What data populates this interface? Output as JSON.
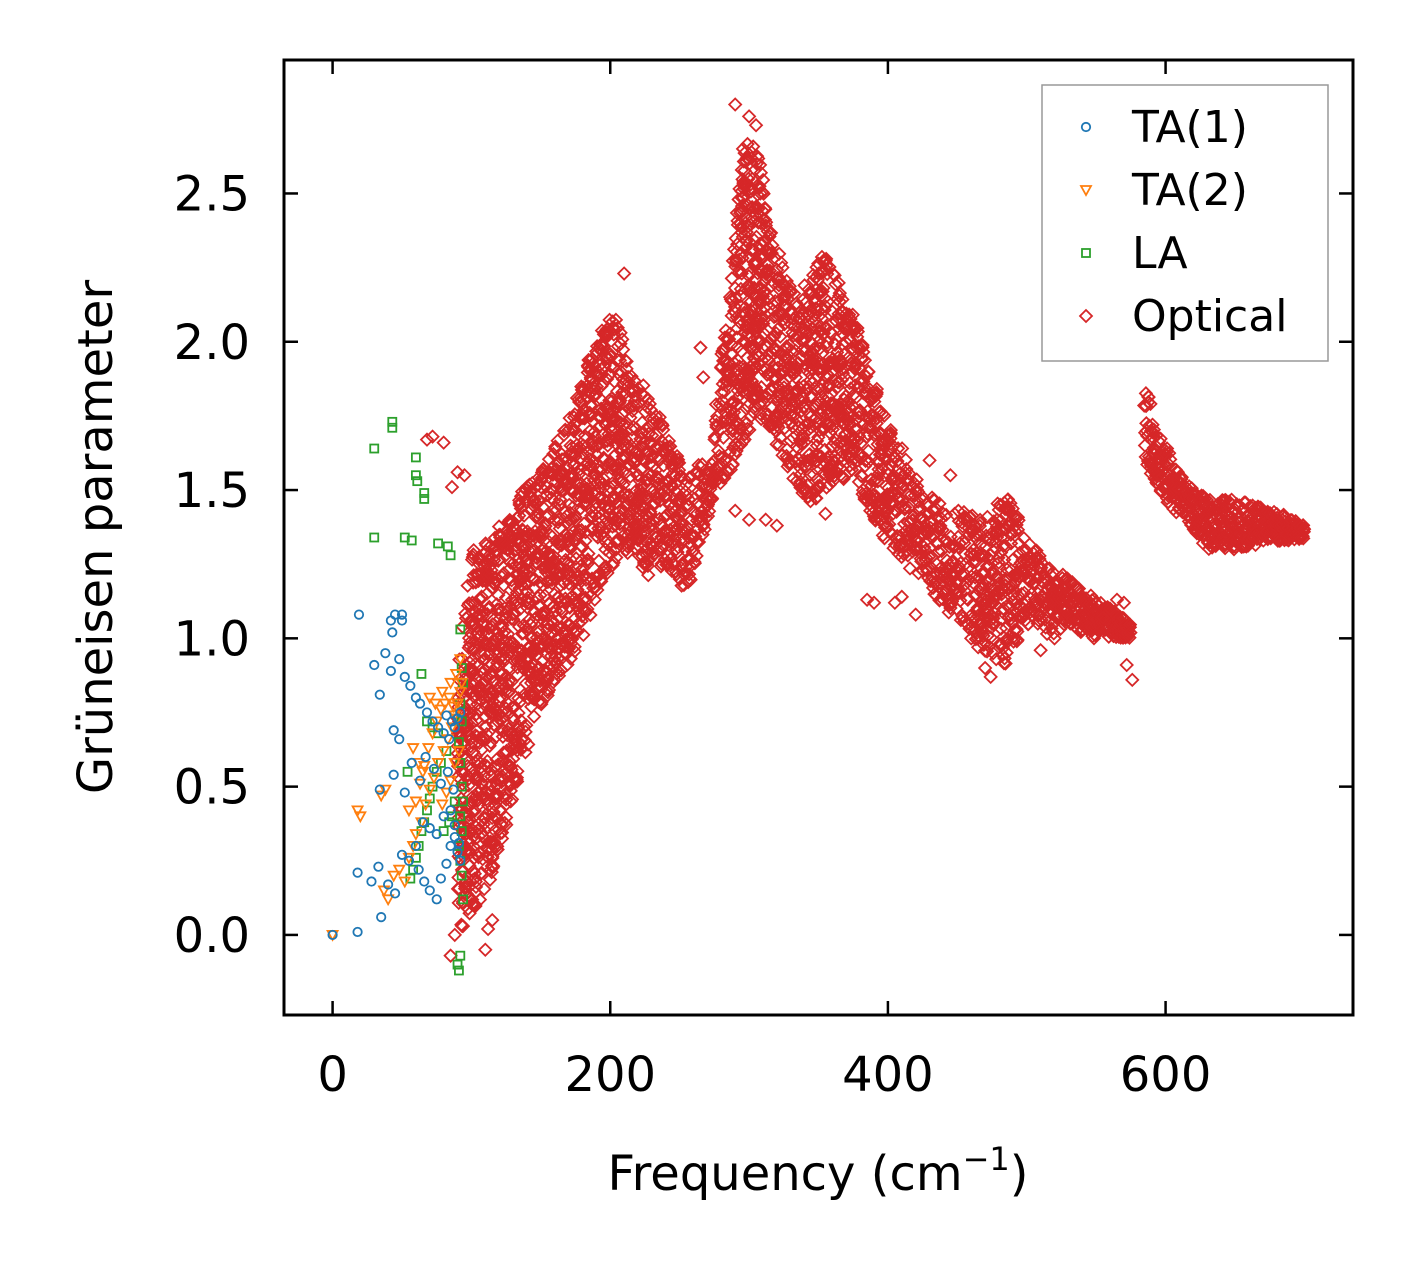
{
  "chart_data": {
    "type": "scatter",
    "xlabel_main": "Frequency (cm",
    "xlabel_sup": "−1",
    "xlabel_close": ")",
    "ylabel": "Grüneisen parameter",
    "xlim": [
      -35,
      735
    ],
    "ylim": [
      -0.27,
      2.95
    ],
    "xticks": [
      0,
      200,
      400,
      600
    ],
    "xtick_labels": [
      "0",
      "200",
      "400",
      "600"
    ],
    "yticks": [
      0.0,
      0.5,
      1.0,
      1.5,
      2.0,
      2.5
    ],
    "ytick_labels": [
      "0.0",
      "0.5",
      "1.0",
      "1.5",
      "2.0",
      "2.5"
    ],
    "grid": false,
    "legend_position": "top-right",
    "series": [
      {
        "name": "TA(1)",
        "label": "TA(1)",
        "marker": "circle",
        "color": "#1f77b4",
        "points": [
          [
            0,
            0.0
          ],
          [
            18,
            0.01
          ],
          [
            35,
            0.06
          ],
          [
            18,
            0.21
          ],
          [
            28,
            0.18
          ],
          [
            33,
            0.23
          ],
          [
            40,
            0.17
          ],
          [
            45,
            0.14
          ],
          [
            50,
            0.27
          ],
          [
            55,
            0.25
          ],
          [
            60,
            0.3
          ],
          [
            62,
            0.22
          ],
          [
            66,
            0.18
          ],
          [
            70,
            0.15
          ],
          [
            75,
            0.12
          ],
          [
            78,
            0.19
          ],
          [
            82,
            0.24
          ],
          [
            85,
            0.3
          ],
          [
            88,
            0.33
          ],
          [
            90,
            0.28
          ],
          [
            92,
            0.25
          ],
          [
            34,
            0.49
          ],
          [
            44,
            0.54
          ],
          [
            52,
            0.48
          ],
          [
            57,
            0.58
          ],
          [
            63,
            0.52
          ],
          [
            67,
            0.6
          ],
          [
            73,
            0.56
          ],
          [
            78,
            0.51
          ],
          [
            83,
            0.55
          ],
          [
            87,
            0.49
          ],
          [
            30,
            0.91
          ],
          [
            34,
            0.81
          ],
          [
            38,
            0.95
          ],
          [
            42,
            0.89
          ],
          [
            48,
            0.93
          ],
          [
            52,
            0.87
          ],
          [
            56,
            0.84
          ],
          [
            60,
            0.8
          ],
          [
            63,
            0.78
          ],
          [
            68,
            0.75
          ],
          [
            72,
            0.72
          ],
          [
            76,
            0.7
          ],
          [
            80,
            0.68
          ],
          [
            84,
            0.66
          ],
          [
            88,
            0.7
          ],
          [
            90,
            0.73
          ],
          [
            92,
            0.75
          ],
          [
            82,
            0.74
          ],
          [
            86,
            0.72
          ],
          [
            44,
            0.69
          ],
          [
            48,
            0.66
          ],
          [
            19,
            1.08
          ],
          [
            42,
            1.06
          ],
          [
            45,
            1.08
          ],
          [
            50,
            1.08
          ],
          [
            43,
            1.02
          ],
          [
            50,
            1.06
          ],
          [
            65,
            0.38
          ],
          [
            70,
            0.36
          ],
          [
            75,
            0.34
          ],
          [
            80,
            0.4
          ],
          [
            85,
            0.42
          ],
          [
            88,
            0.37
          ],
          [
            91,
            0.31
          ]
        ]
      },
      {
        "name": "TA(2)",
        "label": "TA(2)",
        "marker": "triangle",
        "color": "#ff7f0e",
        "points": [
          [
            0,
            0.0
          ],
          [
            18,
            0.42
          ],
          [
            20,
            0.4
          ],
          [
            35,
            0.47
          ],
          [
            38,
            0.49
          ],
          [
            37,
            0.15
          ],
          [
            40,
            0.12
          ],
          [
            44,
            0.2
          ],
          [
            48,
            0.22
          ],
          [
            52,
            0.18
          ],
          [
            55,
            0.26
          ],
          [
            58,
            0.3
          ],
          [
            60,
            0.34
          ],
          [
            64,
            0.38
          ],
          [
            67,
            0.44
          ],
          [
            70,
            0.49
          ],
          [
            73,
            0.53
          ],
          [
            76,
            0.58
          ],
          [
            80,
            0.62
          ],
          [
            83,
            0.66
          ],
          [
            86,
            0.7
          ],
          [
            88,
            0.74
          ],
          [
            90,
            0.78
          ],
          [
            92,
            0.82
          ],
          [
            93,
            0.85
          ],
          [
            55,
            0.42
          ],
          [
            60,
            0.45
          ],
          [
            63,
            0.51
          ],
          [
            66,
            0.57
          ],
          [
            69,
            0.63
          ],
          [
            72,
            0.68
          ],
          [
            75,
            0.72
          ],
          [
            78,
            0.76
          ],
          [
            81,
            0.78
          ],
          [
            84,
            0.8
          ],
          [
            87,
            0.77
          ],
          [
            90,
            0.73
          ],
          [
            58,
            0.63
          ],
          [
            62,
            0.58
          ],
          [
            65,
            0.55
          ],
          [
            70,
            0.8
          ],
          [
            74,
            0.78
          ],
          [
            79,
            0.82
          ],
          [
            85,
            0.85
          ],
          [
            89,
            0.88
          ],
          [
            92,
            0.93
          ],
          [
            88,
            0.58
          ],
          [
            91,
            0.62
          ],
          [
            85,
            0.52
          ],
          [
            82,
            0.48
          ],
          [
            79,
            0.44
          ]
        ]
      },
      {
        "name": "LA",
        "label": "LA",
        "marker": "square",
        "color": "#2ca02c",
        "points": [
          [
            30,
            1.64
          ],
          [
            43,
            1.73
          ],
          [
            43,
            1.71
          ],
          [
            60,
            1.61
          ],
          [
            60,
            1.55
          ],
          [
            61,
            1.53
          ],
          [
            66,
            1.49
          ],
          [
            66,
            1.47
          ],
          [
            30,
            1.34
          ],
          [
            52,
            1.34
          ],
          [
            57,
            1.33
          ],
          [
            76,
            1.32
          ],
          [
            83,
            1.31
          ],
          [
            85,
            1.28
          ],
          [
            92,
            1.03
          ],
          [
            93,
            0.9
          ],
          [
            94,
            0.85
          ],
          [
            92,
            0.78
          ],
          [
            93,
            0.72
          ],
          [
            91,
            0.65
          ],
          [
            92,
            0.58
          ],
          [
            93,
            0.5
          ],
          [
            94,
            0.45
          ],
          [
            92,
            0.4
          ],
          [
            93,
            0.35
          ],
          [
            91,
            0.3
          ],
          [
            92,
            0.25
          ],
          [
            93,
            0.2
          ],
          [
            94,
            0.12
          ],
          [
            92,
            -0.07
          ],
          [
            91,
            -0.12
          ],
          [
            90,
            -0.1
          ],
          [
            82,
            0.62
          ],
          [
            78,
            0.58
          ],
          [
            75,
            0.55
          ],
          [
            72,
            0.5
          ],
          [
            70,
            0.46
          ],
          [
            68,
            0.42
          ],
          [
            66,
            0.38
          ],
          [
            64,
            0.35
          ],
          [
            62,
            0.3
          ],
          [
            60,
            0.26
          ],
          [
            58,
            0.22
          ],
          [
            56,
            0.19
          ],
          [
            54,
            0.55
          ],
          [
            88,
            0.45
          ],
          [
            86,
            0.4
          ],
          [
            84,
            0.38
          ],
          [
            80,
            0.35
          ],
          [
            64,
            0.88
          ],
          [
            68,
            0.72
          ],
          [
            72,
            0.7
          ],
          [
            76,
            0.68
          ]
        ]
      }
    ],
    "optical": {
      "name": "Optical",
      "label": "Optical",
      "marker": "diamond",
      "color": "#d62728",
      "bands": [
        {
          "x": [
            90,
            100,
            115,
            130,
            145,
            160,
            175,
            185,
            195,
            205,
            215,
            225,
            235,
            245,
            255,
            265,
            275
          ],
          "lo": [
            0.0,
            0.05,
            0.2,
            0.45,
            0.7,
            0.85,
            0.95,
            1.05,
            1.2,
            1.25,
            1.3,
            1.2,
            1.25,
            1.2,
            1.15,
            1.3,
            1.5
          ],
          "hi": [
            0.9,
            1.3,
            1.35,
            1.45,
            1.55,
            1.65,
            1.8,
            1.95,
            2.05,
            2.1,
            1.9,
            1.85,
            1.75,
            1.65,
            1.55,
            1.6,
            1.6
          ]
        },
        {
          "x": [
            275,
            285,
            295,
            305,
            315,
            325,
            335,
            345,
            355,
            365,
            375,
            385,
            395,
            410,
            425,
            440,
            455,
            470,
            485,
            500,
            515,
            530,
            545,
            560,
            575
          ],
          "lo": [
            1.5,
            1.55,
            1.65,
            1.75,
            1.7,
            1.6,
            1.5,
            1.45,
            1.5,
            1.55,
            1.5,
            1.45,
            1.35,
            1.25,
            1.2,
            1.1,
            1.05,
            0.95,
            0.9,
            1.05,
            1.0,
            1.05,
            1.0,
            1.0,
            1.0
          ],
          "hi": [
            1.8,
            2.1,
            2.65,
            2.7,
            2.4,
            2.25,
            2.15,
            2.25,
            2.3,
            2.2,
            2.1,
            1.95,
            1.8,
            1.65,
            1.5,
            1.45,
            1.45,
            1.4,
            1.5,
            1.35,
            1.25,
            1.2,
            1.15,
            1.1,
            1.05
          ]
        },
        {
          "x": [
            585,
            600,
            615,
            630,
            650,
            670,
            685,
            700
          ],
          "lo": [
            1.6,
            1.45,
            1.4,
            1.3,
            1.3,
            1.32,
            1.33,
            1.33
          ],
          "hi": [
            1.85,
            1.65,
            1.52,
            1.47,
            1.47,
            1.44,
            1.42,
            1.38
          ]
        }
      ],
      "extra_points": [
        [
          290,
          2.8
        ],
        [
          300,
          2.76
        ],
        [
          305,
          2.73
        ],
        [
          210,
          2.23
        ],
        [
          265,
          1.98
        ],
        [
          267,
          1.88
        ],
        [
          68,
          1.67
        ],
        [
          72,
          1.68
        ],
        [
          80,
          1.66
        ],
        [
          90,
          1.56
        ],
        [
          95,
          1.55
        ],
        [
          86,
          1.51
        ],
        [
          88,
          0.0
        ],
        [
          85,
          -0.07
        ],
        [
          110,
          -0.05
        ],
        [
          112,
          0.02
        ],
        [
          115,
          0.05
        ],
        [
          385,
          1.13
        ],
        [
          390,
          1.12
        ],
        [
          405,
          1.12
        ],
        [
          420,
          1.08
        ],
        [
          410,
          1.14
        ],
        [
          460,
          1.0
        ],
        [
          465,
          0.97
        ],
        [
          470,
          0.9
        ],
        [
          474,
          0.87
        ],
        [
          478,
          0.93
        ],
        [
          482,
          0.98
        ],
        [
          555,
          1.07
        ],
        [
          560,
          1.1
        ],
        [
          565,
          1.13
        ],
        [
          570,
          1.12
        ],
        [
          572,
          0.91
        ],
        [
          576,
          0.86
        ],
        [
          510,
          0.96
        ],
        [
          430,
          1.6
        ],
        [
          445,
          1.55
        ],
        [
          520,
          1.0
        ],
        [
          355,
          1.42
        ],
        [
          320,
          1.38
        ],
        [
          312,
          1.4
        ],
        [
          300,
          1.4
        ],
        [
          290,
          1.43
        ],
        [
          270,
          1.45
        ],
        [
          250,
          1.2
        ]
      ]
    }
  }
}
